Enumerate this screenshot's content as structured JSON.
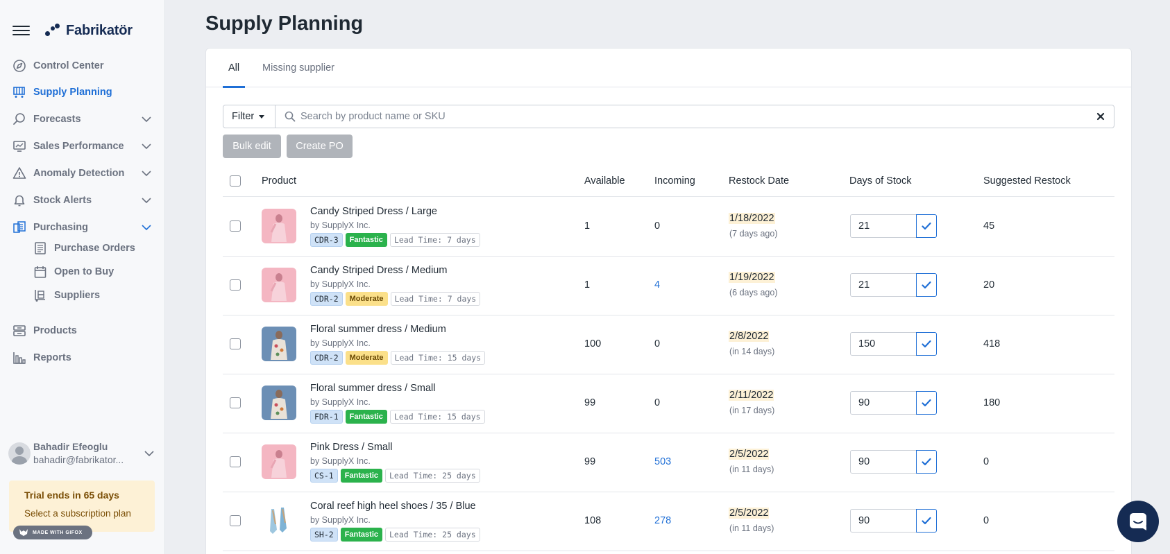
{
  "brand": {
    "name": "Fabrikatör"
  },
  "nav": {
    "control_center": "Control Center",
    "supply_planning": "Supply Planning",
    "forecasts": "Forecasts",
    "sales_performance": "Sales Performance",
    "anomaly_detection": "Anomaly Detection",
    "stock_alerts": "Stock Alerts",
    "purchasing": "Purchasing",
    "purchase_orders": "Purchase Orders",
    "open_to_buy": "Open to Buy",
    "suppliers": "Suppliers",
    "products": "Products",
    "reports": "Reports"
  },
  "user": {
    "name": "Bahadir Efeoglu",
    "email": "bahadir@fabrikator..."
  },
  "trial": {
    "title": "Trial ends in 65 days",
    "subtitle": "Select a subscription plan"
  },
  "gifox": {
    "label": "MADE WITH GIFOX"
  },
  "page": {
    "title": "Supply Planning"
  },
  "tabs": {
    "all": "All",
    "missing_supplier": "Missing supplier"
  },
  "search": {
    "filter_label": "Filter",
    "placeholder": "Search by product name or SKU",
    "value": ""
  },
  "actions": {
    "bulk_edit": "Bulk edit",
    "create_po": "Create PO"
  },
  "columns": {
    "product": "Product",
    "available": "Available",
    "incoming": "Incoming",
    "restock_date": "Restock Date",
    "days_of_stock": "Days of Stock",
    "suggested_restock": "Suggested Restock"
  },
  "rows": [
    {
      "name": "Candy Striped Dress / Large",
      "vendor": "by SupplyX Inc.",
      "sku": "CDR-3",
      "grade": "Fantastic",
      "lead": "Lead Time: 7 days",
      "available": "1",
      "incoming": "0",
      "incoming_link": false,
      "date": "1/18/2022",
      "date_rel": "(7 days ago)",
      "days": "21",
      "suggested": "45",
      "thumb": "pink"
    },
    {
      "name": "Candy Striped Dress / Medium",
      "vendor": "by SupplyX Inc.",
      "sku": "CDR-2",
      "grade": "Moderate",
      "lead": "Lead Time: 7 days",
      "available": "1",
      "incoming": "4",
      "incoming_link": true,
      "date": "1/19/2022",
      "date_rel": "(6 days ago)",
      "days": "21",
      "suggested": "20",
      "thumb": "pink"
    },
    {
      "name": "Floral summer dress / Medium",
      "vendor": "by SupplyX Inc.",
      "sku": "CDR-2",
      "grade": "Moderate",
      "lead": "Lead Time: 15 days",
      "available": "100",
      "incoming": "0",
      "incoming_link": false,
      "date": "2/8/2022",
      "date_rel": "(in 14 days)",
      "days": "150",
      "suggested": "418",
      "thumb": "floral"
    },
    {
      "name": "Floral summer dress / Small",
      "vendor": "by SupplyX Inc.",
      "sku": "FDR-1",
      "grade": "Fantastic",
      "lead": "Lead Time: 15 days",
      "available": "99",
      "incoming": "0",
      "incoming_link": false,
      "date": "2/11/2022",
      "date_rel": "(in 17 days)",
      "days": "90",
      "suggested": "180",
      "thumb": "floral"
    },
    {
      "name": "Pink Dress / Small",
      "vendor": "by SupplyX Inc.",
      "sku": "CS-1",
      "grade": "Fantastic",
      "lead": "Lead Time: 25 days",
      "available": "99",
      "incoming": "503",
      "incoming_link": true,
      "date": "2/5/2022",
      "date_rel": "(in 11 days)",
      "days": "90",
      "suggested": "0",
      "thumb": "pink"
    },
    {
      "name": "Coral reef high heel shoes / 35 / Blue",
      "vendor": "by SupplyX Inc.",
      "sku": "SH-2",
      "grade": "Fantastic",
      "lead": "Lead Time: 25 days",
      "available": "108",
      "incoming": "278",
      "incoming_link": true,
      "date": "2/5/2022",
      "date_rel": "(in 11 days)",
      "days": "90",
      "suggested": "0",
      "thumb": "shoes"
    }
  ],
  "colors": {
    "accent": "#1f6fd6",
    "brand": "#152b53",
    "fantastic": "#2bb24c",
    "moderate": "#fbe08a",
    "date_highlight": "#fdf1d6"
  }
}
